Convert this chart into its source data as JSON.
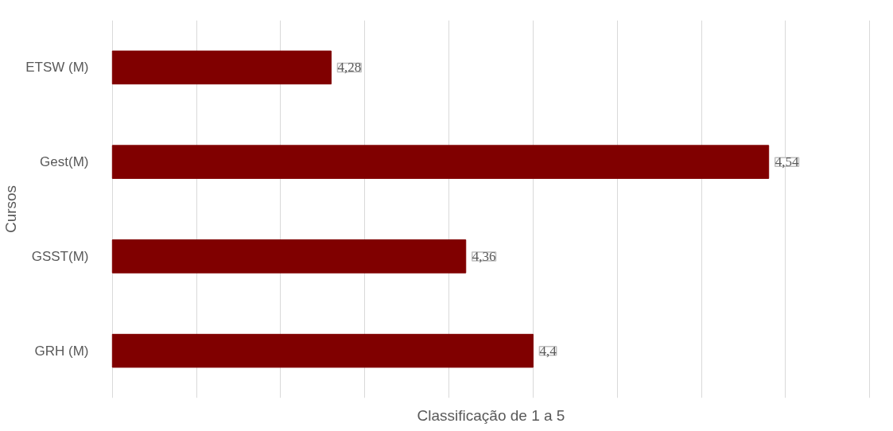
{
  "chart_data": {
    "type": "bar",
    "orientation": "horizontal",
    "xlabel": "Classificação de 1 a 5",
    "ylabel": "Cursos",
    "categories": [
      "ETSW (M)",
      "Gest(M)",
      "GSST(M)",
      "GRH (M)"
    ],
    "values": [
      4.28,
      4.54,
      4.36,
      4.4
    ],
    "value_labels": [
      "4,28",
      "4,54",
      "4,36",
      "4,4"
    ],
    "color": "#800000",
    "xlim": [
      4.15,
      4.6
    ],
    "xticks": [
      {
        "value": 4.15,
        "label": null
      },
      {
        "value": 4.2,
        "label": null
      },
      {
        "value": 4.25,
        "label": null
      },
      {
        "value": 4.3,
        "label": null
      },
      {
        "value": 4.35,
        "label": null
      },
      {
        "value": 4.4,
        "label": null
      },
      {
        "value": 4.45,
        "label": null
      },
      {
        "value": 4.5,
        "label": null
      },
      {
        "value": 4.55,
        "label": null
      },
      {
        "value": 4.6,
        "label": null
      }
    ],
    "tick_labels": "y",
    "grid": "x"
  }
}
